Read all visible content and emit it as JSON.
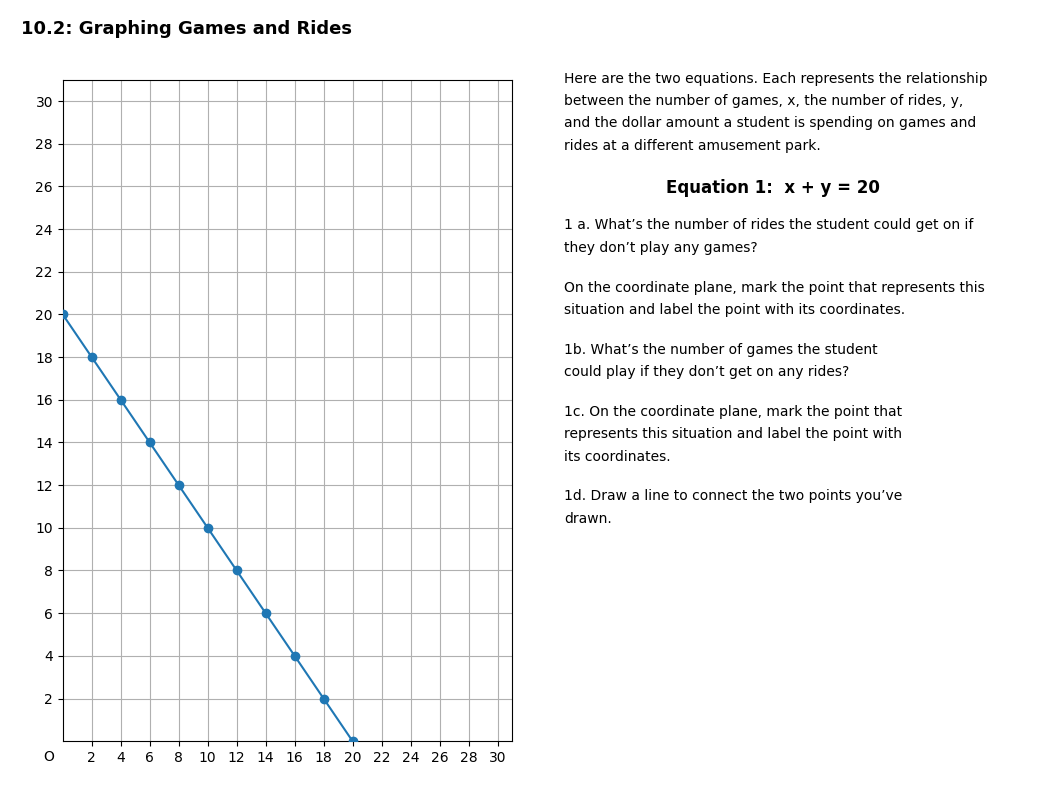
{
  "chart_data": {
    "type": "line",
    "title": "10.2: Graphing Games and Rides",
    "annotations": [
      [
        "Here are the two equations. Each represents the relationship",
        "between the number of games, x, the number of rides, y,",
        "and the dollar amount a student is spending on games and",
        "rides at a different amusement park."
      ],
      [
        "Equation 1:  x + y = 20"
      ],
      [
        "1 a. What’s the number of rides the student could get on if",
        "they don’t play any games?"
      ],
      [
        "On the coordinate plane, mark the point that represents this",
        "situation and label the point with its coordinates."
      ],
      [
        "1b. What’s the number of games the student",
        "could play if they don’t get on any rides?"
      ],
      [
        "1c. On the coordinate plane, mark the point that",
        "represents this situation and label the point with",
        "its coordinates."
      ],
      [
        "1d. Draw a line to connect the two points you’ve",
        "drawn."
      ]
    ],
    "origin_label": "O",
    "series": [
      {
        "type": "line",
        "x": [
          0,
          20
        ],
        "values": [
          20,
          0
        ]
      },
      {
        "type": "scatter",
        "marker": "o",
        "x": [
          0,
          2,
          4,
          6,
          8,
          10,
          12,
          14,
          16,
          18,
          20
        ],
        "values": [
          20,
          18,
          16,
          14,
          12,
          10,
          8,
          6,
          4,
          2,
          0
        ]
      }
    ],
    "xlim": [
      0,
      31
    ],
    "ylim": [
      0,
      31
    ],
    "xticks": [
      2,
      4,
      6,
      8,
      10,
      12,
      14,
      16,
      18,
      20,
      22,
      24,
      26,
      28,
      30
    ],
    "yticks": [
      2,
      4,
      6,
      8,
      10,
      12,
      14,
      16,
      18,
      20,
      22,
      24,
      26,
      28,
      30
    ],
    "grid": true
  }
}
